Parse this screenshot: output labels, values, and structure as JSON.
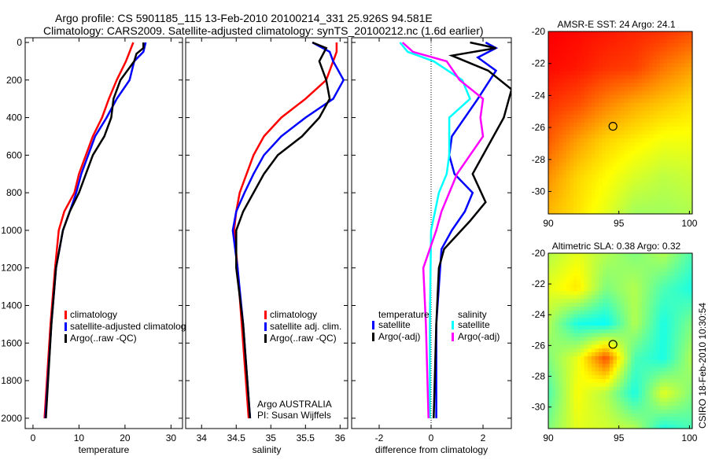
{
  "title_line1": "Argo profile: CS 5901185_115 13-Feb-2010 20100214_331 25.926S 94.581E",
  "title_line2": "Climatology: CARS2009. Satellite-adjusted climatology: synTS_20100212.nc (1.6d earlier)",
  "footer_stamp": "CSIRO 18-Feb-2010 10:30:54",
  "colors": {
    "climatology": "#ff0000",
    "satellite": "#0000ff",
    "argo": "#000000",
    "sal_satellite": "#00ffff",
    "sal_argo": "#ff00ff"
  },
  "chart_data": [
    {
      "type": "line",
      "id": "temperature",
      "xlabel": "temperature",
      "ylabel": "",
      "xlim": [
        -1.7,
        32.5
      ],
      "ylim": [
        2055,
        -25
      ],
      "xticks": [
        "0",
        "10",
        "20",
        "30"
      ],
      "yticks": [
        "0",
        "200",
        "400",
        "600",
        "800",
        "1000",
        "1200",
        "1400",
        "1600",
        "1800",
        "2000"
      ],
      "legend": [
        "climatology",
        "satellite-adjusted climatology",
        "Argo(..raw -QC)"
      ],
      "series": [
        {
          "name": "climatology",
          "color": "#ff0000",
          "depth": [
            0,
            100,
            200,
            300,
            400,
            500,
            600,
            700,
            800,
            900,
            1000,
            1200,
            1500,
            2000
          ],
          "values": [
            21.8,
            20.2,
            18.2,
            16.5,
            15,
            13,
            11.5,
            10,
            9,
            6.8,
            5.6,
            4.8,
            3.8,
            2.5
          ]
        },
        {
          "name": "satellite-adjusted climatology",
          "color": "#0000ff",
          "depth": [
            0,
            50,
            100,
            200,
            300,
            400,
            500,
            600,
            700,
            800,
            900,
            1000,
            1200,
            1500,
            2000
          ],
          "values": [
            24.5,
            24,
            22,
            21,
            18.2,
            16,
            13.5,
            12,
            10.5,
            9.4,
            8,
            6.5,
            5,
            4,
            2.7
          ]
        },
        {
          "name": "Argo(..raw -QC)",
          "color": "#000000",
          "depth": [
            0,
            30,
            60,
            100,
            200,
            300,
            400,
            500,
            600,
            700,
            800,
            900,
            1000,
            1200,
            1500,
            2000
          ],
          "values": [
            24,
            24,
            22.5,
            22,
            19,
            17.5,
            17,
            15.5,
            13,
            11.5,
            10,
            8,
            6.5,
            5,
            4,
            2.8
          ]
        }
      ]
    },
    {
      "type": "line",
      "id": "salinity",
      "xlabel": "salinity",
      "xlim": [
        33.77,
        36.11
      ],
      "ylim": [
        2055,
        -25
      ],
      "xticks": [
        "34",
        "34.5",
        "35",
        "35.5",
        "36"
      ],
      "legend": [
        "climatology",
        "satellite adj. clim.",
        "Argo(..raw -QC)"
      ],
      "annotation": [
        "Argo AUSTRALIA",
        "PI: Susan Wijffels"
      ],
      "series": [
        {
          "name": "climatology",
          "color": "#ff0000",
          "depth": [
            0,
            50,
            100,
            200,
            300,
            400,
            500,
            600,
            700,
            800,
            900,
            1000,
            1200,
            1500,
            2000
          ],
          "values": [
            35.95,
            35.95,
            35.9,
            35.8,
            35.5,
            35.15,
            34.9,
            34.75,
            34.65,
            34.55,
            34.5,
            34.47,
            34.52,
            34.58,
            34.68
          ]
        },
        {
          "name": "satellite adj. clim.",
          "color": "#0000ff",
          "depth": [
            0,
            50,
            100,
            200,
            300,
            400,
            500,
            600,
            700,
            800,
            900,
            1000,
            1200,
            1500,
            2000
          ],
          "values": [
            35.6,
            35.85,
            35.9,
            36.05,
            35.9,
            35.5,
            35.15,
            34.9,
            34.75,
            34.62,
            34.5,
            34.45,
            34.52,
            34.6,
            34.7
          ]
        },
        {
          "name": "Argo(..raw -QC)",
          "color": "#000000",
          "depth": [
            0,
            30,
            100,
            200,
            300,
            400,
            500,
            600,
            700,
            800,
            900,
            1000,
            1200,
            1500,
            2000
          ],
          "values": [
            35.6,
            35.8,
            35.7,
            35.8,
            35.85,
            35.7,
            35.45,
            35.1,
            34.9,
            34.75,
            34.6,
            34.5,
            34.5,
            34.6,
            34.7
          ]
        }
      ]
    },
    {
      "type": "line",
      "id": "difference",
      "xlabel": "difference from climatology",
      "xlim": [
        -3.06,
        3.09
      ],
      "ylim": [
        2055,
        -25
      ],
      "xticks": [
        "-2",
        "0",
        "2"
      ],
      "legend_headers": [
        "temperature",
        "salinity"
      ],
      "legend": [
        "satellite",
        "Argo(-adj)",
        "satellite",
        "Argo(-adj)"
      ],
      "series": [
        {
          "name": "temperature satellite",
          "color": "#0000ff",
          "depth": [
            0,
            30,
            80,
            150,
            300,
            400,
            500,
            600,
            700,
            800,
            900,
            1000,
            1100,
            1300,
            1500,
            2000
          ],
          "values": [
            2.1,
            2.5,
            1.8,
            2.5,
            1.8,
            1.3,
            0.8,
            0.7,
            0.9,
            1.6,
            1.3,
            0.8,
            0.4,
            0.3,
            0.2,
            0.2
          ]
        },
        {
          "name": "temperature Argo(-adj)",
          "color": "#000000",
          "depth": [
            0,
            30,
            70,
            150,
            250,
            400,
            550,
            700,
            850,
            950,
            1100,
            1200,
            1500,
            2000
          ],
          "values": [
            1.5,
            2.5,
            0.8,
            2.2,
            3.1,
            2.8,
            2.2,
            1.6,
            2.1,
            1.5,
            0.5,
            0.3,
            0.2,
            0.1
          ]
        },
        {
          "name": "salinity satellite",
          "color": "#00ffff",
          "depth": [
            0,
            50,
            100,
            200,
            300,
            400,
            500,
            600,
            700,
            800,
            900,
            1000,
            1500,
            2000
          ],
          "values": [
            -1.2,
            -0.9,
            0.1,
            1.2,
            1.5,
            0.7,
            0.7,
            0.7,
            0.6,
            0.3,
            0.15,
            0,
            -0.05,
            -0.05
          ]
        },
        {
          "name": "salinity Argo(-adj)",
          "color": "#ff00ff",
          "depth": [
            0,
            50,
            100,
            200,
            300,
            400,
            500,
            600,
            700,
            800,
            900,
            1000,
            1200,
            1500,
            2000
          ],
          "values": [
            -1.1,
            -0.7,
            0.6,
            1.1,
            2.0,
            1.9,
            2.0,
            1.5,
            1.0,
            0.7,
            0.4,
            0.2,
            -0.3,
            -0.2,
            -0.1
          ]
        }
      ]
    },
    {
      "type": "heatmap",
      "id": "sst_map",
      "title": "AMSR-E SST: 24 Argo: 24.1",
      "xlim": [
        90,
        100.2
      ],
      "ylim": [
        -31.4,
        -20
      ],
      "xticks": [
        "90",
        "95",
        "100"
      ],
      "yticks": [
        "-20",
        "-22",
        "-24",
        "-26",
        "-28",
        "-30"
      ],
      "clim": [
        19,
        26.5
      ],
      "marker": [
        94.581,
        -25.926
      ],
      "grid_lat": [
        -20,
        -22.3,
        -24.6,
        -26.9,
        -29.2,
        -31.4
      ],
      "grid_lon": [
        90,
        92,
        94,
        96,
        98,
        100.2
      ],
      "values": [
        [
          25.6,
          25.5,
          25.4,
          25.3,
          25.2,
          25.0
        ],
        [
          25.5,
          25.4,
          25.2,
          25.1,
          24.7,
          24.4
        ],
        [
          25.2,
          25.0,
          24.6,
          24.3,
          24.1,
          23.9
        ],
        [
          24.9,
          24.4,
          24.0,
          23.8,
          23.6,
          23.6
        ],
        [
          24.5,
          24.0,
          23.7,
          23.4,
          23.2,
          23.3
        ],
        [
          24.2,
          23.9,
          23.5,
          23.0,
          23.0,
          23.1
        ]
      ]
    },
    {
      "type": "heatmap",
      "id": "sla_map",
      "title": "Altimetric SLA: 0.38 Argo: 0.32",
      "xlim": [
        90,
        100.2
      ],
      "ylim": [
        -31.4,
        -20
      ],
      "xticks": [
        "90",
        "95",
        "100"
      ],
      "yticks": [
        "-20",
        "-22",
        "-24",
        "-26",
        "-28",
        "-30"
      ],
      "clim": [
        -0.5,
        0.5
      ],
      "marker": [
        94.581,
        -25.926
      ],
      "grid_lat": [
        -20,
        -22.3,
        -24.6,
        -26.9,
        -29.2,
        -31.4
      ],
      "grid_lon": [
        90,
        92,
        94,
        96,
        98,
        100.2
      ],
      "values": [
        [
          0.05,
          0.1,
          0.05,
          0.0,
          0.05,
          -0.05
        ],
        [
          0.1,
          0.15,
          0.0,
          0.05,
          -0.05,
          -0.1
        ],
        [
          0.05,
          -0.1,
          -0.12,
          0.05,
          -0.1,
          0.0
        ],
        [
          0.0,
          0.1,
          0.3,
          -0.05,
          -0.1,
          0.05
        ],
        [
          -0.05,
          0.12,
          0.05,
          -0.1,
          0.1,
          0.0
        ],
        [
          0.0,
          0.1,
          0.08,
          0.05,
          -0.1,
          -0.05
        ]
      ]
    }
  ]
}
